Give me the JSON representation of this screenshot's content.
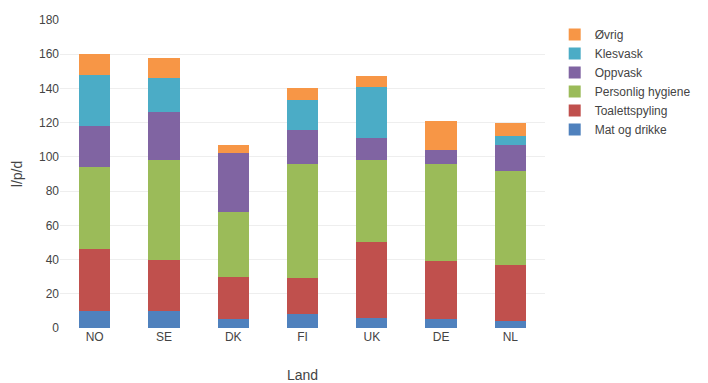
{
  "chart_data": {
    "type": "bar",
    "stacked": true,
    "xlabel": "Land",
    "ylabel": "l/p/d",
    "categories": [
      "NO",
      "SE",
      "DK",
      "FI",
      "UK",
      "DE",
      "NL"
    ],
    "series": [
      {
        "name": "Øvrig",
        "color": "#F79646",
        "values": [
          12,
          12,
          5,
          7,
          6,
          17,
          8
        ]
      },
      {
        "name": "Klesvask",
        "color": "#4BACC6",
        "values": [
          30,
          20,
          0,
          17,
          30,
          0,
          5
        ]
      },
      {
        "name": "Oppvask",
        "color": "#8064A2",
        "values": [
          24,
          28,
          34,
          20,
          13,
          8,
          15
        ]
      },
      {
        "name": "Personlig hygiene",
        "color": "#9BBB59",
        "values": [
          48,
          58,
          38,
          67,
          48,
          57,
          55
        ]
      },
      {
        "name": "Toalettspyling",
        "color": "#C0504D",
        "values": [
          36,
          30,
          25,
          21,
          44,
          34,
          33
        ]
      },
      {
        "name": "Mat og drikke",
        "color": "#4F81BD",
        "values": [
          10,
          10,
          5,
          8,
          6,
          5,
          4
        ]
      }
    ],
    "ylim": [
      0,
      180
    ],
    "yticks": [
      0,
      20,
      40,
      60,
      80,
      100,
      120,
      140,
      160,
      180
    ],
    "grid": true,
    "legend": "right"
  }
}
